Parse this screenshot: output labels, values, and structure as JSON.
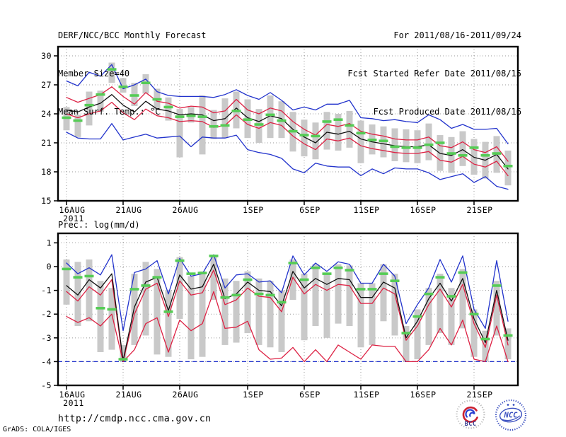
{
  "header": {
    "title": "DERF/NCC/BCC Monthly Forecast",
    "member_size": "Member Size=40",
    "valid_range": "For 2011/08/16-2011/09/24",
    "refer_date": "Fcst Started Refer Date 2011/08/15",
    "produced_date": "Fcst Produced Date 2011/08/16"
  },
  "footer": {
    "url": "http://cmdp.ncc.cma.gov.cn",
    "credit": "GrADS: COLA/IGES",
    "bcc_logo_text": "BCC",
    "ncc_logo_text": "NCC"
  },
  "colors": {
    "blue": "#2233cc",
    "red": "#dd2244",
    "black": "#111111",
    "green": "#55cc55",
    "bar": "#c9c9c9",
    "grid": "#999999",
    "frame": "#000000",
    "text": "#000000",
    "logo_blue": "#3a4fc0",
    "logo_red": "#cc2030",
    "bcc_text": "#333a8e",
    "logo_gray": "#b8b8b8"
  },
  "chart_data": [
    {
      "name": "mean-surface-temperature",
      "type": "line",
      "title": "Mean Surf. Temp.: °C",
      "x_count": 40,
      "dates": [
        "16AUG",
        "17AUG",
        "18AUG",
        "19AUG",
        "20AUG",
        "21AUG",
        "22AUG",
        "23AUG",
        "24AUG",
        "25AUG",
        "26AUG",
        "27AUG",
        "28AUG",
        "29AUG",
        "30AUG",
        "31AUG",
        "1SEP",
        "2SEP",
        "3SEP",
        "4SEP",
        "5SEP",
        "6SEP",
        "7SEP",
        "8SEP",
        "9SEP",
        "10SEP",
        "11SEP",
        "12SEP",
        "13SEP",
        "14SEP",
        "15SEP",
        "16SEP",
        "17SEP",
        "18SEP",
        "19SEP",
        "20SEP",
        "21SEP",
        "22SEP",
        "23SEP",
        "24SEP"
      ],
      "x_ticks": [
        {
          "day": 0,
          "label": "16AUG",
          "sub": "2011"
        },
        {
          "day": 5,
          "label": "21AUG"
        },
        {
          "day": 10,
          "label": "26AUG"
        },
        {
          "day": 16,
          "label": "1SEP"
        },
        {
          "day": 21,
          "label": "6SEP"
        },
        {
          "day": 26,
          "label": "11SEP"
        },
        {
          "day": 31,
          "label": "16SEP"
        },
        {
          "day": 36,
          "label": "21SEP"
        }
      ],
      "y_ticks": [
        30,
        27,
        24,
        21,
        18,
        15
      ],
      "ylim": [
        15,
        30.95
      ],
      "grid": true,
      "legend_position": "none",
      "series": [
        {
          "name": "ensemble-max",
          "color": "blue",
          "values": [
            27.4,
            26.9,
            28.3,
            27.9,
            29.1,
            26.6,
            27.0,
            27.6,
            26.3,
            25.9,
            25.8,
            25.8,
            25.8,
            25.7,
            26.0,
            26.5,
            25.9,
            25.5,
            26.2,
            25.4,
            24.4,
            24.7,
            24.4,
            25.0,
            25.0,
            25.4,
            23.6,
            23.5,
            23.3,
            23.4,
            23.2,
            23.1,
            23.9,
            23.4,
            22.5,
            22.9,
            22.4,
            22.4,
            22.5,
            20.9
          ]
        },
        {
          "name": "ensemble-min",
          "color": "blue",
          "values": [
            22.1,
            21.5,
            21.4,
            21.4,
            23.0,
            21.3,
            21.6,
            21.9,
            21.5,
            21.6,
            21.7,
            20.6,
            21.6,
            21.5,
            21.5,
            21.8,
            20.3,
            20.0,
            19.8,
            19.4,
            18.3,
            17.9,
            18.9,
            18.6,
            18.5,
            18.5,
            17.6,
            18.3,
            17.8,
            18.4,
            18.3,
            18.3,
            17.9,
            17.2,
            17.5,
            17.8,
            16.9,
            17.5,
            16.5,
            16.2
          ]
        },
        {
          "name": "upper-spread",
          "color": "red",
          "values": [
            25.7,
            25.2,
            25.6,
            26.0,
            26.8,
            25.8,
            25.0,
            26.2,
            25.3,
            25.1,
            24.6,
            24.8,
            24.7,
            24.1,
            24.3,
            25.5,
            24.4,
            24.0,
            24.6,
            24.3,
            23.2,
            22.4,
            21.8,
            22.9,
            22.7,
            23.0,
            22.2,
            21.9,
            21.7,
            21.4,
            21.3,
            21.3,
            21.6,
            20.7,
            20.5,
            21.1,
            20.3,
            20.0,
            20.6,
            19.1
          ]
        },
        {
          "name": "lower-spread",
          "color": "red",
          "values": [
            24.0,
            23.6,
            24.0,
            24.3,
            25.2,
            24.1,
            23.4,
            24.5,
            23.8,
            23.6,
            23.2,
            23.3,
            23.2,
            22.6,
            22.8,
            23.9,
            22.9,
            22.5,
            23.1,
            22.8,
            21.7,
            20.9,
            20.3,
            21.4,
            21.2,
            21.5,
            20.7,
            20.4,
            20.2,
            20.0,
            19.9,
            19.9,
            20.1,
            19.2,
            19.0,
            19.6,
            18.8,
            18.5,
            19.1,
            17.6
          ]
        },
        {
          "name": "ensemble-mean",
          "color": "black",
          "values": [
            24.4,
            24.2,
            24.7,
            25.1,
            26.0,
            24.9,
            24.2,
            25.3,
            24.5,
            24.3,
            23.9,
            24.0,
            23.9,
            23.3,
            23.5,
            24.6,
            23.6,
            23.2,
            23.8,
            23.5,
            22.4,
            21.6,
            21.0,
            22.1,
            21.9,
            22.2,
            21.4,
            21.1,
            20.9,
            20.7,
            20.6,
            20.6,
            20.8,
            19.9,
            19.7,
            20.3,
            19.5,
            19.2,
            19.8,
            18.3
          ]
        }
      ],
      "bars": {
        "name": "member-range-bar",
        "lo": [
          22.3,
          21.6,
          22.8,
          24.2,
          27.2,
          26.2,
          24.8,
          26.1,
          24.4,
          23.3,
          19.5,
          23.1,
          19.8,
          21.4,
          21.5,
          22.5,
          21.5,
          21.0,
          21.5,
          21.5,
          20.1,
          19.6,
          19.3,
          20.3,
          20.2,
          20.5,
          18.9,
          19.8,
          19.5,
          19.1,
          19.0,
          18.9,
          19.2,
          18.1,
          17.9,
          18.6,
          17.7,
          17.3,
          17.9,
          16.6
        ],
        "hi": [
          24.7,
          23.9,
          26.3,
          26.4,
          29.3,
          27.7,
          27.2,
          28.1,
          26.6,
          25.7,
          24.5,
          24.7,
          25.9,
          24.4,
          25.6,
          26.3,
          25.5,
          24.5,
          25.9,
          25.3,
          24.2,
          23.4,
          23.1,
          24.2,
          24.0,
          24.3,
          23.3,
          22.9,
          22.7,
          22.5,
          22.4,
          22.3,
          23.0,
          21.8,
          21.6,
          22.2,
          21.4,
          21.1,
          21.7,
          20.2
        ]
      },
      "dashes": {
        "name": "ensemble-median",
        "color": "green",
        "values": [
          23.6,
          23.3,
          24.9,
          26.0,
          28.6,
          26.8,
          25.9,
          27.2,
          25.5,
          24.7,
          23.7,
          23.8,
          23.7,
          22.7,
          22.8,
          24.3,
          23.4,
          22.9,
          23.9,
          23.3,
          22.2,
          21.8,
          21.7,
          23.2,
          23.4,
          22.8,
          22.0,
          21.3,
          21.2,
          20.6,
          20.5,
          20.5,
          20.8,
          21.0,
          19.9,
          19.7,
          20.5,
          19.7,
          19.9,
          18.6
        ]
      }
    },
    {
      "name": "precipitation",
      "type": "line",
      "title": "Prec.: log(mm/d)",
      "x_count": 40,
      "dates": [
        "16AUG",
        "17AUG",
        "18AUG",
        "19AUG",
        "20AUG",
        "21AUG",
        "22AUG",
        "23AUG",
        "24AUG",
        "25AUG",
        "26AUG",
        "27AUG",
        "28AUG",
        "29AUG",
        "30AUG",
        "31AUG",
        "1SEP",
        "2SEP",
        "3SEP",
        "4SEP",
        "5SEP",
        "6SEP",
        "7SEP",
        "8SEP",
        "9SEP",
        "10SEP",
        "11SEP",
        "12SEP",
        "13SEP",
        "14SEP",
        "15SEP",
        "16SEP",
        "17SEP",
        "18SEP",
        "19SEP",
        "20SEP",
        "21SEP",
        "22SEP",
        "23SEP",
        "24SEP"
      ],
      "x_ticks": [
        {
          "day": 0,
          "label": "16AUG",
          "sub": "2011"
        },
        {
          "day": 5,
          "label": "21AUG"
        },
        {
          "day": 10,
          "label": "26AUG"
        },
        {
          "day": 16,
          "label": "1SEP"
        },
        {
          "day": 21,
          "label": "6SEP"
        },
        {
          "day": 26,
          "label": "11SEP"
        },
        {
          "day": 31,
          "label": "16SEP"
        },
        {
          "day": 36,
          "label": "21SEP"
        }
      ],
      "y_ticks": [
        1,
        0,
        -1,
        -2,
        -3,
        -4,
        -5
      ],
      "ylim": [
        -5,
        1.4
      ],
      "grid": true,
      "legend_position": "none",
      "baseline": {
        "name": "ensemble-min-baseline",
        "value": -4,
        "color": "blue",
        "style": "dashed"
      },
      "series": [
        {
          "name": "ensemble-max",
          "color": "blue",
          "values": [
            0.15,
            -0.3,
            -0.05,
            -0.35,
            0.5,
            -2.7,
            -0.25,
            -0.1,
            0.25,
            -1.15,
            0.35,
            -0.4,
            -0.3,
            0.5,
            -0.9,
            -0.35,
            -0.3,
            -0.65,
            -0.6,
            -1.1,
            0.45,
            -0.35,
            0.15,
            -0.2,
            0.2,
            0.1,
            -0.7,
            -0.7,
            0.1,
            -0.4,
            -2.4,
            -1.6,
            -0.9,
            0.3,
            -0.65,
            0.45,
            -1.8,
            -2.6,
            0.25,
            -2.3
          ]
        },
        {
          "name": "upper-spread",
          "color": "red",
          "values": [
            -1.05,
            -1.45,
            -0.85,
            -1.2,
            -0.55,
            -4.0,
            -2.0,
            -0.95,
            -0.7,
            -2.1,
            -0.6,
            -1.2,
            -1.1,
            -0.15,
            -1.6,
            -1.4,
            -0.9,
            -1.25,
            -1.3,
            -1.9,
            -0.45,
            -1.15,
            -0.75,
            -1.0,
            -0.75,
            -0.8,
            -1.55,
            -1.55,
            -0.9,
            -1.15,
            -3.1,
            -2.5,
            -1.6,
            -0.95,
            -1.7,
            -0.75,
            -2.4,
            -3.4,
            -1.2,
            -3.3
          ]
        },
        {
          "name": "lower-spread",
          "color": "red",
          "values": [
            -2.1,
            -2.35,
            -2.15,
            -2.5,
            -2.0,
            -4.0,
            -3.5,
            -2.4,
            -2.15,
            -3.6,
            -2.25,
            -2.7,
            -2.4,
            -1.05,
            -2.6,
            -2.55,
            -2.3,
            -3.5,
            -3.9,
            -3.85,
            -3.4,
            -4.0,
            -3.5,
            -4.0,
            -3.3,
            -3.6,
            -3.9,
            -3.3,
            -3.35,
            -3.35,
            -4.0,
            -4.0,
            -3.5,
            -2.6,
            -3.3,
            -2.25,
            -3.9,
            -4.0,
            -2.5,
            -4.0
          ]
        },
        {
          "name": "ensemble-mean",
          "color": "black",
          "values": [
            -0.8,
            -1.2,
            -0.55,
            -0.9,
            -0.3,
            -3.95,
            -1.7,
            -0.65,
            -0.45,
            -1.85,
            -0.35,
            -0.95,
            -0.85,
            0.1,
            -1.35,
            -1.15,
            -0.65,
            -1.0,
            -1.05,
            -1.65,
            -0.2,
            -0.9,
            -0.5,
            -0.75,
            -0.5,
            -0.55,
            -1.3,
            -1.3,
            -0.65,
            -0.9,
            -3.0,
            -2.3,
            -1.35,
            -0.7,
            -1.45,
            -0.5,
            -2.2,
            -3.2,
            -1.0,
            -3.1
          ]
        }
      ],
      "bars": {
        "name": "member-range-bar",
        "lo": [
          -1.6,
          -2.5,
          -2.3,
          -3.6,
          -3.5,
          -4.0,
          -3.3,
          -2.9,
          -3.7,
          -3.8,
          -2.2,
          -3.9,
          -3.8,
          -1.4,
          -3.3,
          -3.2,
          -2.8,
          -3.3,
          -3.4,
          -3.6,
          -1.4,
          -3.1,
          -2.5,
          -3.0,
          -2.4,
          -2.5,
          -3.4,
          -3.3,
          -2.3,
          -2.9,
          -4.0,
          -3.9,
          -3.3,
          -2.8,
          -3.3,
          -2.6,
          -3.8,
          -4.0,
          -2.9,
          -3.9
        ],
        "hi": [
          0.3,
          0.2,
          0.3,
          -0.6,
          -0.9,
          -3.3,
          -0.3,
          0.2,
          -0.1,
          -1.0,
          0.4,
          -0.4,
          -0.2,
          0.4,
          -0.5,
          -0.6,
          -0.2,
          -0.5,
          -0.6,
          -1.0,
          0.3,
          -0.3,
          0.1,
          -0.3,
          0.1,
          0.05,
          -0.7,
          -0.7,
          0.1,
          -0.3,
          -2.5,
          -1.8,
          -0.9,
          -0.3,
          -0.9,
          -0.1,
          -1.8,
          -2.7,
          -0.6,
          -2.6
        ]
      },
      "dashes": {
        "name": "ensemble-median",
        "color": "green",
        "values": [
          -0.1,
          -0.45,
          -0.4,
          -1.75,
          -1.8,
          -3.9,
          -0.95,
          -0.8,
          -0.45,
          -1.9,
          0.25,
          -0.3,
          -0.27,
          0.45,
          -1.3,
          -1.2,
          -0.55,
          -1.15,
          -1.2,
          -1.5,
          0.15,
          -0.55,
          -0.05,
          -0.3,
          -0.05,
          -0.15,
          -0.95,
          -0.95,
          -0.3,
          -0.6,
          -2.8,
          -2.1,
          -1.15,
          -0.45,
          -1.25,
          -0.25,
          -2.0,
          -3.05,
          -0.8,
          -2.9
        ]
      }
    }
  ]
}
